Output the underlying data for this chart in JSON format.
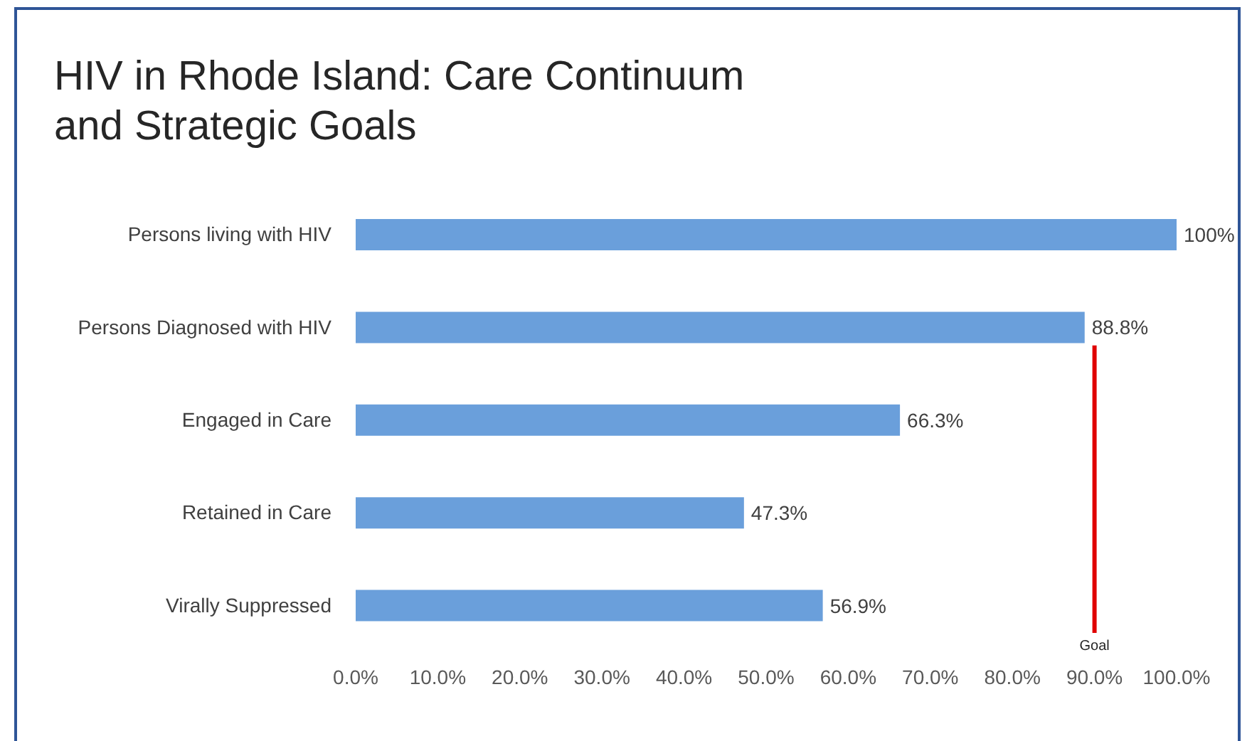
{
  "chart_data": {
    "type": "bar",
    "orientation": "horizontal",
    "title": "HIV in Rhode Island: Care Continuum and Strategic Goals",
    "categories": [
      "Persons living with HIV",
      "Persons Diagnosed with HIV",
      "Engaged in Care",
      "Retained in Care",
      "Virally Suppressed"
    ],
    "values": [
      100,
      88.8,
      66.3,
      47.3,
      56.9
    ],
    "color": "#6a9fdb",
    "value_labels": [
      "100%",
      "88.8%",
      "66.3%",
      "47.3%",
      "56.9%"
    ],
    "xlim": [
      0,
      100
    ],
    "xticks": [
      {
        "value": 0,
        "label": "0.0%"
      },
      {
        "value": 10,
        "label": "10.0%"
      },
      {
        "value": 20,
        "label": "20.0%"
      },
      {
        "value": 30,
        "label": "30.0%"
      },
      {
        "value": 40,
        "label": "40.0%"
      },
      {
        "value": 50,
        "label": "50.0%"
      },
      {
        "value": 60,
        "label": "60.0%"
      },
      {
        "value": 70,
        "label": "70.0%"
      },
      {
        "value": 80,
        "label": "80.0%"
      },
      {
        "value": 90,
        "label": "90.0%"
      },
      {
        "value": 100,
        "label": "100.0%"
      }
    ],
    "ref_lines": [
      {
        "axis": "x",
        "value": 90,
        "label": "Goal",
        "color": "#e00000"
      }
    ]
  }
}
